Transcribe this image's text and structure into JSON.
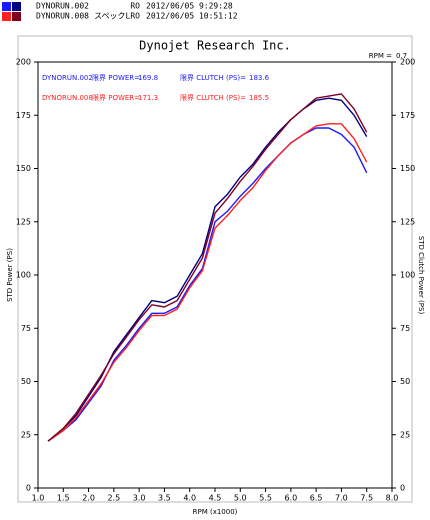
{
  "header": [
    {
      "file": "DYNORUN.002",
      "note": "RO",
      "date": "2012/06/05 9:29:28",
      "colors": [
        "#1a1aff",
        "#000080"
      ]
    },
    {
      "file": "DYNORUN.008",
      "note": "スペックLRO",
      "date": "2012/06/05 10:51:12",
      "colors": [
        "#ff2020",
        "#800020"
      ]
    }
  ],
  "chart_data": {
    "type": "line",
    "title": "Dynojet Research Inc.",
    "x_label": "RPM (x1000)",
    "y_label": "STD Power (PS)",
    "y2_label": "STD Clutch Power (PS)",
    "rpm_label": "RPM =",
    "rpm": 0.7,
    "readouts": [
      {
        "run": "DYNORUN.002",
        "power_label": "限界 POWER=",
        "power": 169.8,
        "clutch_label": "限界 CLUTCH (PS)=",
        "clutch": 183.6,
        "color": "#1a1aff"
      },
      {
        "run": "DYNORUN.008",
        "power_label": "限界 POWER=",
        "power": 171.3,
        "clutch_label": "限界 CLUTCH (PS)=",
        "clutch": 185.5,
        "color": "#ff2020"
      }
    ],
    "x": [
      1.2,
      1.5,
      1.75,
      2.0,
      2.25,
      2.5,
      2.75,
      3.0,
      3.25,
      3.5,
      3.75,
      4.0,
      4.25,
      4.5,
      4.75,
      5.0,
      5.25,
      5.5,
      5.75,
      6.0,
      6.25,
      6.5,
      6.75,
      7.0,
      7.25,
      7.5
    ],
    "series": [
      {
        "color": "#1a1aff",
        "values": [
          22,
          27,
          32,
          40,
          48,
          60,
          67,
          75,
          82,
          82,
          85,
          95,
          103,
          125,
          130,
          137,
          143,
          150,
          156,
          162,
          166,
          169,
          169,
          166,
          160,
          148
        ]
      },
      {
        "color": "#000080",
        "values": [
          22,
          28,
          34,
          43,
          52,
          64,
          72,
          80,
          88,
          87,
          90,
          100,
          110,
          132,
          138,
          146,
          152,
          160,
          167,
          173,
          178,
          182,
          183,
          182,
          175,
          165
        ]
      },
      {
        "color": "#ff2020",
        "values": [
          22,
          27,
          33,
          41,
          49,
          59,
          66,
          74,
          81,
          81,
          84,
          94,
          102,
          122,
          128,
          135,
          141,
          149,
          156,
          162,
          166,
          170,
          171,
          171,
          164,
          153
        ]
      },
      {
        "color": "#800020",
        "values": [
          22,
          28,
          35,
          44,
          53,
          63,
          71,
          79,
          86,
          85,
          88,
          98,
          108,
          129,
          136,
          144,
          151,
          159,
          166,
          173,
          178,
          183,
          184,
          185,
          178,
          167
        ]
      }
    ],
    "xlim": [
      1,
      8
    ],
    "xticks": [
      {
        "value": 1,
        "label": "1.0"
      },
      1.5,
      {
        "value": 2,
        "label": "2.0"
      },
      2.5,
      {
        "value": 3,
        "label": "3.0"
      },
      3.5,
      {
        "value": 4,
        "label": "4.0"
      },
      4.5,
      {
        "value": 5,
        "label": "5.0"
      },
      5.5,
      {
        "value": 6,
        "label": "6.0"
      },
      6.5,
      {
        "value": 7,
        "label": "7.0"
      },
      7.5,
      {
        "value": 8,
        "label": "8.0"
      }
    ],
    "ylim": [
      0,
      200
    ],
    "yticks": [
      0,
      25,
      50,
      75,
      100,
      125,
      150,
      175,
      200
    ],
    "y2lim": [
      0,
      200
    ],
    "y2ticks": [
      0,
      25,
      50,
      75,
      100,
      125,
      150,
      175,
      200
    ]
  }
}
